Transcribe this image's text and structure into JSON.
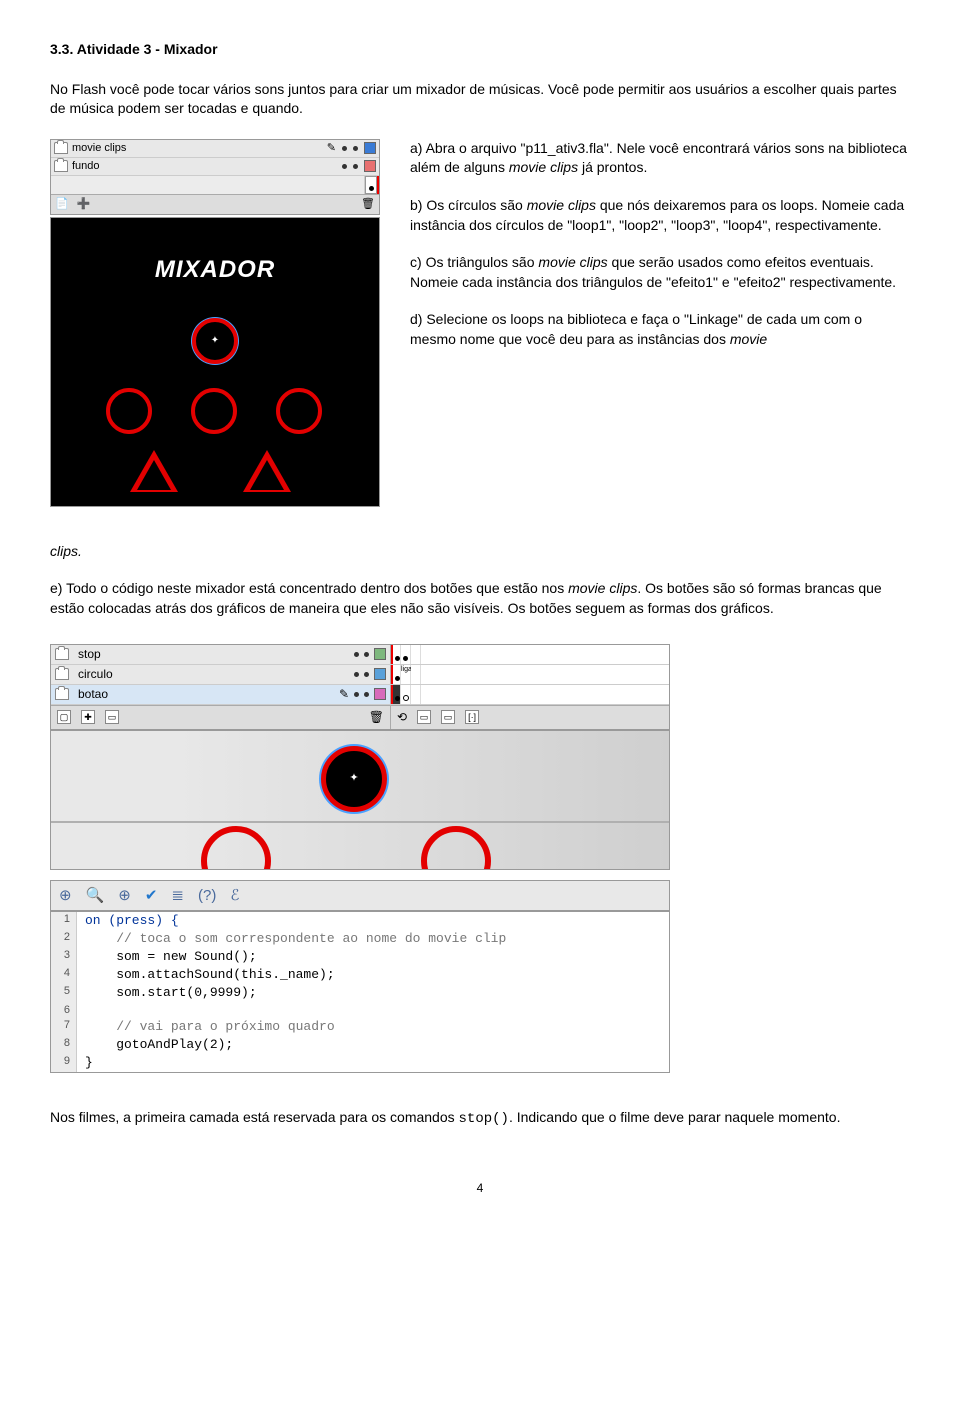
{
  "title": "3.3. Atividade 3 - Mixador",
  "intro": "No Flash você pode tocar vários sons juntos para criar um mixador de músicas. Você pode permitir aos usuários a escolher quais partes de música podem ser tocadas e quando.",
  "timeline1": {
    "layers": [
      {
        "name": "movie clips",
        "color": "#3a7bd5"
      },
      {
        "name": "fundo",
        "color": "#e87070"
      }
    ]
  },
  "mixador_label": "MIXADOR",
  "steps": {
    "a": {
      "label": "a)",
      "text": "Abra o arquivo \"p11_ativ3.fla\". Nele você encontrará vários sons na biblioteca além de alguns ",
      "italic": "movie clips",
      "text2": " já prontos."
    },
    "b": {
      "label": "b)",
      "text": "Os círculos são ",
      "italic": "movie clips",
      "text2": " que nós deixaremos para os loops. Nomeie cada instância dos círculos de \"loop1\", \"loop2\", \"loop3\", \"loop4\", respectivamente."
    },
    "c": {
      "label": "c)",
      "text": "Os triângulos são ",
      "italic": "movie clips",
      "text2": " que serão usados como efeitos eventuais. Nomeie cada instância dos triângulos de \"efeito1\" e \"efeito2\" respectivamente."
    },
    "d": {
      "label": "d)",
      "text": "Selecione os loops na biblioteca e faça o \"Linkage\" de cada um com o mesmo nome que você deu para as instâncias dos ",
      "italic": "movie"
    }
  },
  "clips_word": "clips.",
  "step_e": {
    "label": "e)",
    "text": "Todo o código neste mixador está concentrado dentro dos botões que estão nos ",
    "italic": "movie clips",
    "text2": ". Os botões são só formas brancas que estão colocadas atrás dos gráficos de maneira que eles não são visíveis. Os botões seguem as formas dos gráficos."
  },
  "timeline2": {
    "layers": [
      {
        "name": "stop",
        "color": "#7fb87f"
      },
      {
        "name": "circulo",
        "color": "#5aa0d8"
      },
      {
        "name": "botao",
        "color": "#d86bbb"
      }
    ]
  },
  "code": {
    "lines": [
      {
        "n": "1",
        "t": "on (press) {",
        "cls": "kw"
      },
      {
        "n": "2",
        "t": "    // toca o som correspondente ao nome do movie clip",
        "cls": "cmt"
      },
      {
        "n": "3",
        "t": "    som = new Sound();",
        "cls": ""
      },
      {
        "n": "4",
        "t": "    som.attachSound(this._name);",
        "cls": ""
      },
      {
        "n": "5",
        "t": "    som.start(0,9999);",
        "cls": ""
      },
      {
        "n": "6",
        "t": "",
        "cls": ""
      },
      {
        "n": "7",
        "t": "    // vai para o próximo quadro",
        "cls": "cmt"
      },
      {
        "n": "8",
        "t": "    gotoAndPlay(2);",
        "cls": ""
      },
      {
        "n": "9",
        "t": "}",
        "cls": ""
      }
    ]
  },
  "closing": {
    "pre": "Nos filmes, a primeira camada está reservada para os comandos ",
    "code": "stop()",
    "post": ". Indicando que o filme deve parar naquele momento."
  },
  "pagenum": "4",
  "colors": {
    "accent_red": "#e30000",
    "selection_blue": "#4aa1ff",
    "panel_gray": "#e8e8e8"
  }
}
